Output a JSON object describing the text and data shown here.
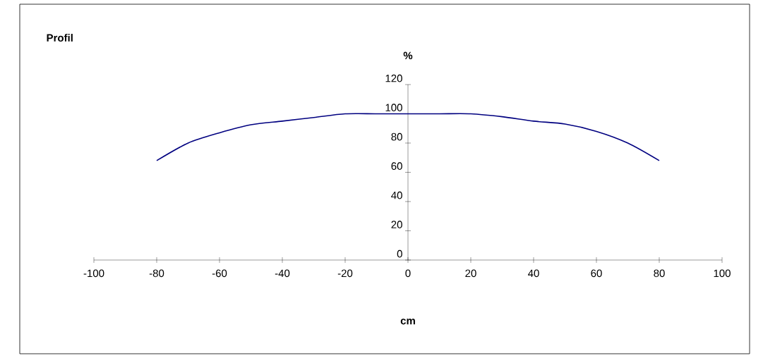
{
  "chart_data": {
    "type": "line",
    "title": "Profil",
    "xlabel": "cm",
    "ylabel": "%",
    "x": [
      -80,
      -70,
      -60,
      -50,
      -40,
      -30,
      -20,
      -10,
      0,
      10,
      20,
      30,
      40,
      50,
      60,
      70,
      80
    ],
    "series": [
      {
        "color": "#000080",
        "values": [
          68,
          80,
          87,
          92.5,
          95,
          97.5,
          100,
          100,
          100,
          100,
          100,
          98,
          95,
          93,
          88,
          80,
          68
        ]
      }
    ],
    "xlim": [
      -100,
      100
    ],
    "ylim": [
      0,
      120
    ],
    "xticks": [
      -100,
      -80,
      -60,
      -40,
      -20,
      0,
      20,
      40,
      60,
      80,
      100
    ],
    "yticks": [
      0,
      20,
      40,
      60,
      80,
      100,
      120
    ],
    "grid": false,
    "legend": false,
    "marker": "none",
    "line_style": "solid"
  }
}
